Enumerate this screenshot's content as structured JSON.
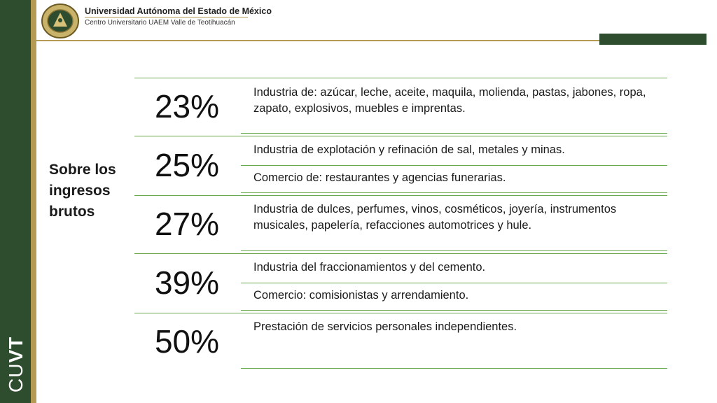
{
  "header": {
    "university": "Universidad Autónoma del Estado de México",
    "center": "Centro Universitario UAEM Valle de Teotihuacán"
  },
  "sidebar": {
    "brand_light": "CU",
    "brand_bold": "VT"
  },
  "side_label": "Sobre los ingresos brutos",
  "rows": [
    {
      "percent": "23%",
      "items": [
        "Industria de: azúcar, leche, aceite, maquila, molienda, pastas, jabones, ropa, zapato, explosivos, muebles e imprentas."
      ]
    },
    {
      "percent": "25%",
      "items": [
        "Industria de explotación y refinación de sal, metales y minas.",
        "Comercio de: restaurantes y agencias funerarias."
      ]
    },
    {
      "percent": "27%",
      "items": [
        "Industria de dulces, perfumes, vinos, cosméticos, joyería, instrumentos musicales, papelería, refacciones automotrices y hule."
      ]
    },
    {
      "percent": "39%",
      "items": [
        "Industria del fraccionamientos y del cemento.",
        "Comercio: comisionistas y arrendamiento."
      ]
    },
    {
      "percent": "50%",
      "items": [
        "Prestación de servicios personales independientes."
      ]
    }
  ],
  "colors": {
    "green": "#2e4d2e",
    "gold": "#b59a55",
    "line": "#6aa84f"
  }
}
